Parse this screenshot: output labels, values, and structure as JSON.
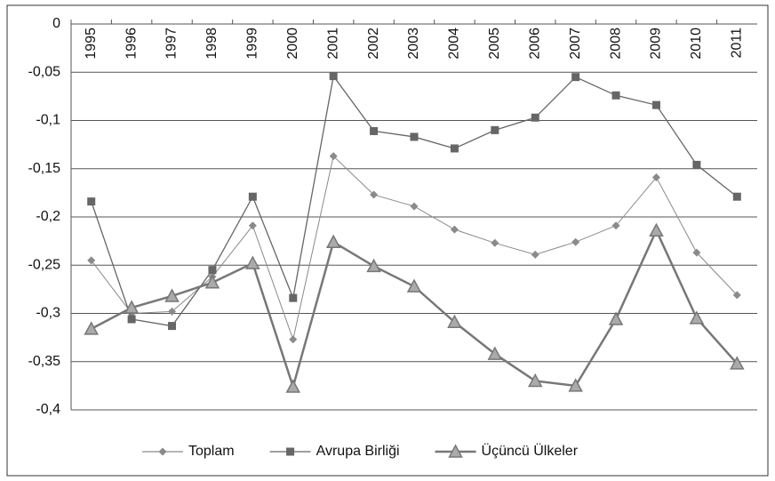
{
  "chart_data": {
    "type": "line",
    "categories": [
      "1995",
      "1996",
      "1997",
      "1998",
      "1999",
      "2000",
      "2001",
      "2002",
      "2003",
      "2004",
      "2005",
      "2006",
      "2007",
      "2008",
      "2009",
      "2010",
      "2011"
    ],
    "series": [
      {
        "name": "Toplam",
        "color": "#8a8a8a",
        "marker": "diamond",
        "values": [
          -0.245,
          -0.3,
          -0.298,
          -0.262,
          -0.209,
          -0.327,
          -0.137,
          -0.177,
          -0.189,
          -0.213,
          -0.227,
          -0.239,
          -0.226,
          -0.209,
          -0.159,
          -0.237,
          -0.281
        ]
      },
      {
        "name": "Avrupa Birliği",
        "color": "#666666",
        "marker": "square",
        "values": [
          -0.184,
          -0.306,
          -0.313,
          -0.255,
          -0.179,
          -0.284,
          -0.054,
          -0.111,
          -0.117,
          -0.129,
          -0.11,
          -0.097,
          -0.055,
          -0.074,
          -0.084,
          -0.146,
          -0.179
        ]
      },
      {
        "name": "Üçüncü Ülkeler",
        "color": "#777777",
        "marker": "triangle",
        "values": [
          -0.316,
          -0.294,
          -0.282,
          -0.268,
          -0.248,
          -0.376,
          -0.226,
          -0.251,
          -0.272,
          -0.309,
          -0.342,
          -0.37,
          -0.375,
          -0.306,
          -0.214,
          -0.305,
          -0.352
        ]
      }
    ],
    "ylim": [
      -0.4,
      0
    ],
    "yticks": [
      {
        "value": -0.4,
        "label": "-0,4"
      },
      {
        "value": -0.35,
        "label": "-0,35"
      },
      {
        "value": -0.3,
        "label": "-0,3"
      },
      {
        "value": -0.25,
        "label": "-0,25"
      },
      {
        "value": -0.2,
        "label": "-0,2"
      },
      {
        "value": -0.15,
        "label": "-0,15"
      },
      {
        "value": -0.1,
        "label": "-0,1"
      },
      {
        "value": -0.05,
        "label": "-0,05"
      },
      0
    ],
    "grid": true,
    "legend": "bottom"
  }
}
